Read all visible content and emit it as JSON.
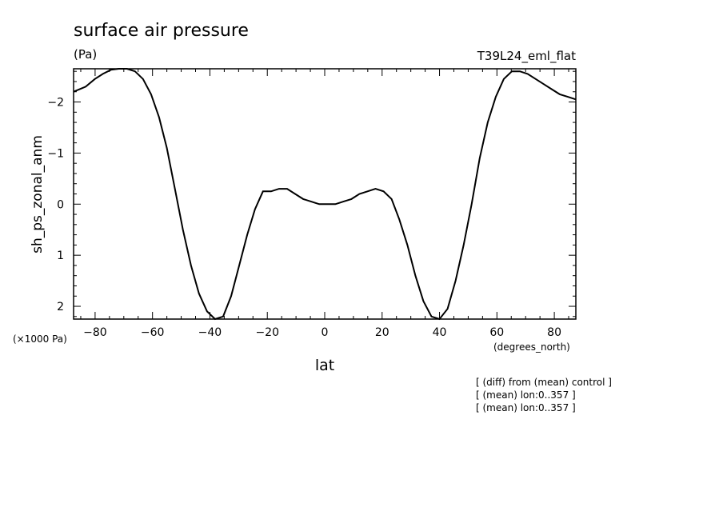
{
  "chart_data": {
    "type": "line",
    "title": "surface air pressure",
    "units_label": "(Pa)",
    "run_label": "T39L24_eml_flat",
    "ylabel": "sh_ps_zonal_anm",
    "xlabel": "lat",
    "x_unit_label": "(degrees_north)",
    "y_scale_label": "(×1000 Pa)",
    "y_inverted": true,
    "xlim": [
      -87.5,
      87.5
    ],
    "ylim": [
      -2.65,
      2.25
    ],
    "x_ticks": [
      -80,
      -60,
      -40,
      -20,
      0,
      20,
      40,
      60,
      80
    ],
    "x_tick_labels": [
      "−80",
      "−60",
      "−40",
      "−20",
      "0",
      "20",
      "40",
      "60",
      "80"
    ],
    "y_ticks": [
      -2,
      -1,
      0,
      1,
      2
    ],
    "y_tick_labels": [
      "−2",
      "−1",
      "0",
      "1",
      "2"
    ],
    "series": [
      {
        "x": [
          -87.5,
          -83.3,
          -80.1,
          -77.3,
          -74.5,
          -71.7,
          -68.9,
          -66.1,
          -63.3,
          -60.5,
          -57.7,
          -55.0,
          -52.2,
          -49.4,
          -46.6,
          -43.8,
          -41.0,
          -38.2,
          -35.4,
          -32.6,
          -29.8,
          -27.0,
          -24.3,
          -21.5,
          -18.7,
          -15.9,
          -13.1,
          -10.3,
          -7.5,
          -4.7,
          -1.9,
          0.9,
          3.7,
          6.5,
          9.3,
          12.1,
          14.9,
          17.7,
          20.5,
          23.3,
          26.0,
          28.8,
          31.6,
          34.4,
          37.2,
          40.0,
          42.8,
          45.6,
          48.4,
          51.2,
          54.0,
          56.8,
          59.6,
          62.4,
          65.2,
          68.0,
          70.7,
          73.5,
          76.3,
          79.1,
          81.9,
          84.7,
          87.5
        ],
        "y": [
          -2.2,
          -2.3,
          -2.45,
          -2.55,
          -2.63,
          -2.65,
          -2.65,
          -2.6,
          -2.45,
          -2.15,
          -1.7,
          -1.1,
          -0.3,
          0.5,
          1.2,
          1.75,
          2.1,
          2.25,
          2.2,
          1.8,
          1.2,
          0.6,
          0.1,
          -0.25,
          -0.25,
          -0.3,
          -0.3,
          -0.2,
          -0.1,
          -0.05,
          0.0,
          0.0,
          0.0,
          -0.05,
          -0.1,
          -0.2,
          -0.25,
          -0.3,
          -0.25,
          -0.1,
          0.3,
          0.8,
          1.4,
          1.9,
          2.2,
          2.25,
          2.05,
          1.5,
          0.8,
          0.0,
          -0.9,
          -1.6,
          -2.1,
          -2.45,
          -2.6,
          -2.6,
          -2.55,
          -2.45,
          -2.35,
          -2.25,
          -2.15,
          -2.1,
          -2.05
        ]
      }
    ],
    "grid": false,
    "notes": [
      "[ (diff) from (mean) control ]",
      "[ (mean) lon:0..357 ]",
      "[ (mean) lon:0..357 ]"
    ]
  }
}
